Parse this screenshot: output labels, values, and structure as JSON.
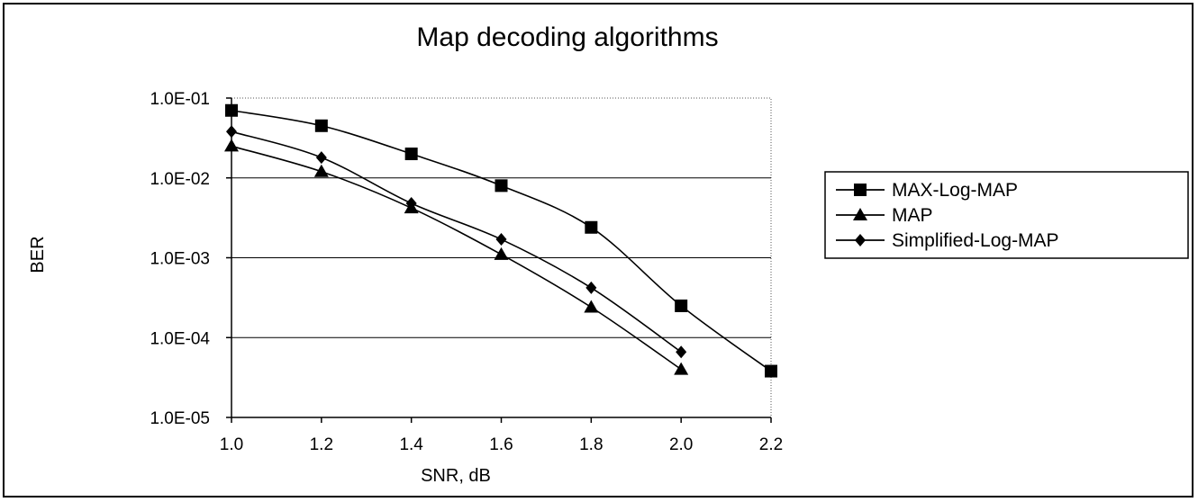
{
  "chart_data": {
    "type": "line",
    "title": "Map decoding algorithms",
    "xlabel": "SNR, dB",
    "ylabel": "BER",
    "y_scale": "log",
    "ylim": [
      1e-05,
      0.1
    ],
    "xlim": [
      1.0,
      2.2
    ],
    "x_ticks": [
      "1.0",
      "1.2",
      "1.4",
      "1.6",
      "1.8",
      "2.0",
      "2.2"
    ],
    "y_ticks": [
      "1.0E-01",
      "1.0E-02",
      "1.0E-03",
      "1.0E-04",
      "1.0E-05"
    ],
    "grid": "horizontal",
    "legend_position": "right",
    "series": [
      {
        "name": "MAX-Log-MAP",
        "marker": "square",
        "x": [
          1.0,
          1.2,
          1.4,
          1.6,
          1.8,
          2.0,
          2.2
        ],
        "y": [
          0.07,
          0.045,
          0.02,
          0.008,
          0.0024,
          0.00025,
          3.8e-05
        ]
      },
      {
        "name": "MAP",
        "marker": "triangle",
        "x": [
          1.0,
          1.2,
          1.4,
          1.6,
          1.8,
          2.0
        ],
        "y": [
          0.025,
          0.012,
          0.0042,
          0.0011,
          0.00024,
          4e-05
        ]
      },
      {
        "name": "Simplified-Log-MAP",
        "marker": "diamond",
        "x": [
          1.0,
          1.2,
          1.4,
          1.6,
          1.8,
          2.0
        ],
        "y": [
          0.038,
          0.018,
          0.0048,
          0.0017,
          0.00042,
          6.6e-05
        ]
      }
    ]
  }
}
